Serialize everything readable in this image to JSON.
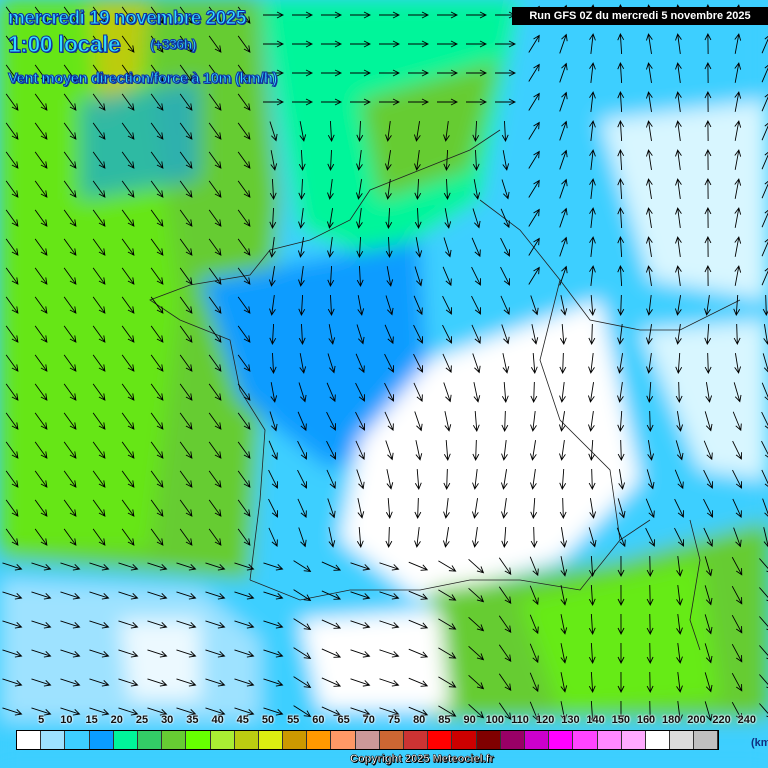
{
  "header": {
    "date": "mercredi 19 novembre 2025",
    "time": "1:00 locale",
    "lead": "(+336h)",
    "parameter": "Vent moyen direction/force à 10m (km/h)",
    "run": "Run GFS 0Z du mercredi 5 novembre 2025"
  },
  "legend": {
    "labels": [
      "5",
      "10",
      "15",
      "20",
      "25",
      "30",
      "35",
      "40",
      "45",
      "50",
      "55",
      "60",
      "65",
      "70",
      "75",
      "80",
      "85",
      "90",
      "100",
      "110",
      "120",
      "130",
      "140",
      "150",
      "160",
      "180",
      "200",
      "220",
      "240"
    ],
    "colors": [
      "#ffffff",
      "#9ee2ff",
      "#3dcfff",
      "#0a9cff",
      "#00f59a",
      "#33cc66",
      "#66cc33",
      "#66ff00",
      "#aaee33",
      "#bbcc11",
      "#ddee11",
      "#cc9900",
      "#ff9900",
      "#ff9966",
      "#cc9999",
      "#cc6633",
      "#cc3333",
      "#ff0000",
      "#cc0000",
      "#800000",
      "#990066",
      "#cc00cc",
      "#ff00ff",
      "#ff44ff",
      "#ff88ff",
      "#ffaaff",
      "#ffffff",
      "#dddddd",
      "#c0c0c0"
    ],
    "unit": "(km/h)"
  },
  "footer": {
    "copyright": "Copyright 2025 Meteociel.fr"
  }
}
